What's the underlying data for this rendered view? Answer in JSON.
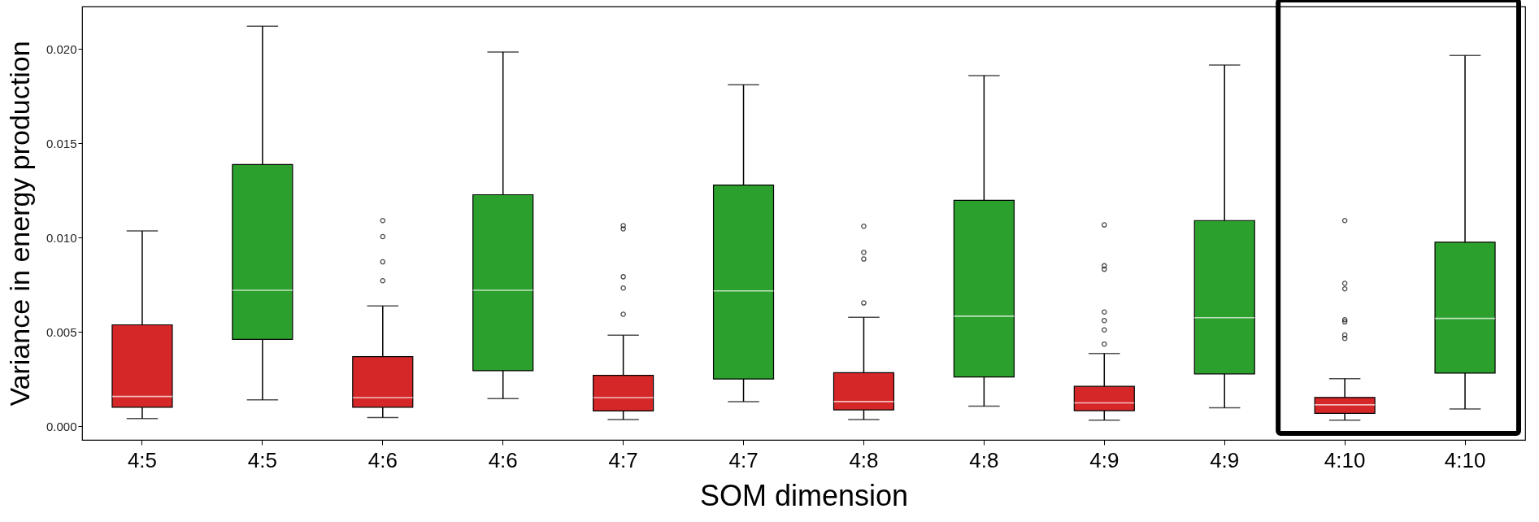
{
  "chart_data": {
    "type": "box",
    "xlabel": "SOM dimension",
    "ylabel": "Variance in energy production",
    "categories": [
      "4:5",
      "4:5",
      "4:6",
      "4:6",
      "4:7",
      "4:7",
      "4:8",
      "4:8",
      "4:9",
      "4:9",
      "4:10",
      "4:10"
    ],
    "colors": [
      "#d62728",
      "#2ca02c",
      "#d62728",
      "#2ca02c",
      "#d62728",
      "#2ca02c",
      "#d62728",
      "#2ca02c",
      "#d62728",
      "#2ca02c",
      "#d62728",
      "#2ca02c"
    ],
    "boxes": [
      {
        "low": 0.0004,
        "q1": 0.001,
        "median": 0.00157,
        "q3": 0.00537,
        "high": 0.01035
      },
      {
        "low": 0.00139,
        "q1": 0.0046,
        "median": 0.0072,
        "q3": 0.01387,
        "high": 0.0212
      },
      {
        "low": 0.00046,
        "q1": 0.001,
        "median": 0.00151,
        "q3": 0.00368,
        "high": 0.00637,
        "outliers": [
          0.0109,
          0.01005,
          0.00871,
          0.00771
        ]
      },
      {
        "low": 0.00146,
        "q1": 0.00294,
        "median": 0.0072,
        "q3": 0.01227,
        "high": 0.01984
      },
      {
        "low": 0.00035,
        "q1": 0.00081,
        "median": 0.00151,
        "q3": 0.00269,
        "high": 0.00482,
        "outliers": [
          0.01063,
          0.01046,
          0.00792,
          0.00732,
          0.00593
        ]
      },
      {
        "low": 0.0013,
        "q1": 0.0025,
        "median": 0.00717,
        "q3": 0.01278,
        "high": 0.0181
      },
      {
        "low": 0.00035,
        "q1": 0.00086,
        "median": 0.0013,
        "q3": 0.00283,
        "high": 0.00577,
        "outliers": [
          0.0106,
          0.00921,
          0.00886,
          0.00653
        ]
      },
      {
        "low": 0.00106,
        "q1": 0.00261,
        "median": 0.00583,
        "q3": 0.01197,
        "high": 0.01859
      },
      {
        "low": 0.00032,
        "q1": 0.00082,
        "median": 0.00123,
        "q3": 0.00211,
        "high": 0.00385,
        "outliers": [
          0.01067,
          0.0085,
          0.00832,
          0.00605,
          0.0056,
          0.0051,
          0.00435
        ]
      },
      {
        "low": 0.00097,
        "q1": 0.00277,
        "median": 0.00575,
        "q3": 0.0109,
        "high": 0.01915
      },
      {
        "low": 0.00032,
        "q1": 0.00068,
        "median": 0.00113,
        "q3": 0.00152,
        "high": 0.00251,
        "outliers": [
          0.0109,
          0.00757,
          0.00728,
          0.00564,
          0.00553,
          0.00483,
          0.00465
        ]
      },
      {
        "low": 0.00091,
        "q1": 0.00281,
        "median": 0.00571,
        "q3": 0.00975,
        "high": 0.01965
      }
    ],
    "ylim": [
      -0.00073,
      0.02225
    ],
    "yticks": [
      {
        "value": 0,
        "label": "0.000"
      },
      0.005,
      {
        "value": 0.01,
        "label": "0.010"
      },
      0.015,
      {
        "value": 0.02,
        "label": "0.020"
      }
    ]
  }
}
